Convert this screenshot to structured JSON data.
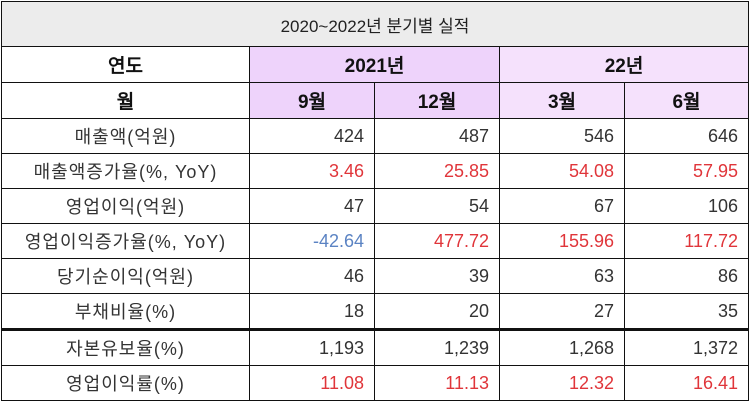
{
  "title": "2020~2022년 분기별 실적",
  "header": {
    "year_label": "연도",
    "years": [
      {
        "label": "2021년",
        "color": "#eed3fb"
      },
      {
        "label": "22년",
        "color": "#f5e1fc"
      }
    ],
    "month_label": "월",
    "months": [
      "9월",
      "12월",
      "3월",
      "6월"
    ]
  },
  "rows": [
    {
      "label": "매출액(억원)",
      "values": [
        "424",
        "487",
        "546",
        "646"
      ],
      "styles": [
        "",
        "",
        "",
        ""
      ]
    },
    {
      "label": "매출액증가율(%, YoY)",
      "values": [
        "3.46",
        "25.85",
        "54.08",
        "57.95"
      ],
      "styles": [
        "red",
        "red",
        "red",
        "red"
      ]
    },
    {
      "label": "영업이익(억원)",
      "values": [
        "47",
        "54",
        "67",
        "106"
      ],
      "styles": [
        "",
        "",
        "",
        ""
      ]
    },
    {
      "label": "영업이익증가율(%, YoY)",
      "values": [
        "-42.64",
        "477.72",
        "155.96",
        "117.72"
      ],
      "styles": [
        "blue",
        "red",
        "red",
        "red"
      ]
    },
    {
      "label": "당기순이익(억원)",
      "values": [
        "46",
        "39",
        "63",
        "86"
      ],
      "styles": [
        "",
        "",
        "",
        ""
      ]
    },
    {
      "label": "부채비율(%)",
      "values": [
        "18",
        "20",
        "27",
        "35"
      ],
      "styles": [
        "",
        "",
        "",
        ""
      ]
    },
    {
      "label": "자본유보율(%)",
      "values": [
        "1,193",
        "1,239",
        "1,268",
        "1,372"
      ],
      "styles": [
        "",
        "",
        "",
        ""
      ]
    },
    {
      "label": "영업이익률(%)",
      "values": [
        "11.08",
        "11.13",
        "12.32",
        "16.41"
      ],
      "styles": [
        "red",
        "red",
        "red",
        "red"
      ]
    }
  ],
  "colors": {
    "positive": "#e0353a",
    "negative": "#5b83c3",
    "title_bg": "#ececec"
  }
}
